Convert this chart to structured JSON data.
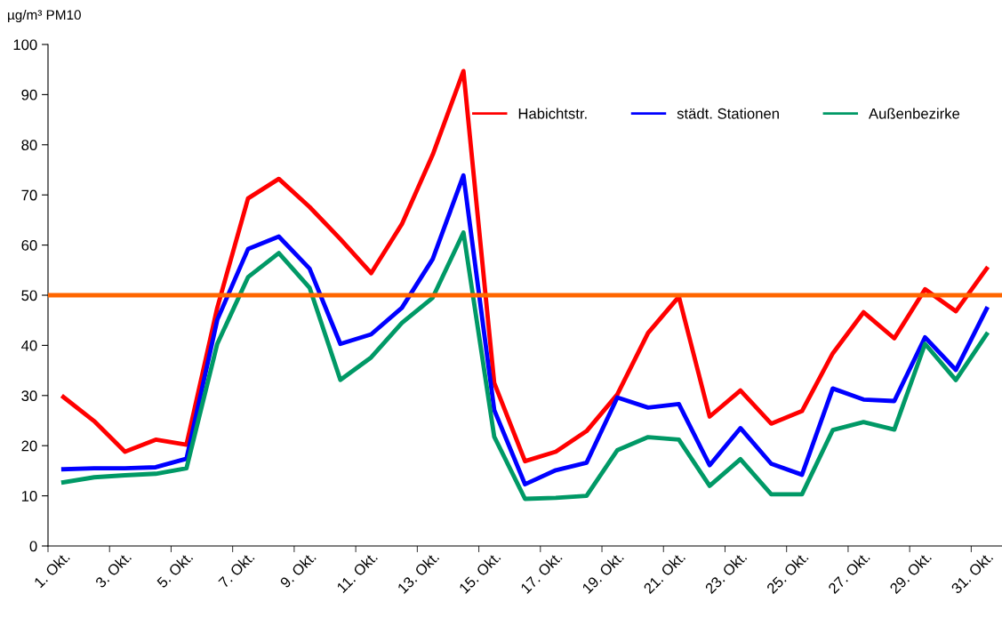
{
  "chart_data": {
    "type": "line",
    "ylabel": "µg/m³ PM10",
    "categories": [
      "1. Okt.",
      null,
      "3. Okt.",
      null,
      "5. Okt.",
      null,
      "7. Okt.",
      null,
      "9. Okt.",
      null,
      "11. Okt.",
      null,
      "13. Okt.",
      null,
      "15. Okt.",
      null,
      "17. Okt.",
      null,
      "19. Okt.",
      null,
      "21. Okt.",
      null,
      "23. Okt.",
      null,
      "25. Okt.",
      null,
      "27. Okt.",
      null,
      "29. Okt.",
      null,
      "31. Okt."
    ],
    "series": [
      {
        "name": "Habichtstr.",
        "color": "#ff0000",
        "values": [
          29.7,
          24.9,
          18.8,
          21.2,
          20.2,
          47.5,
          69.3,
          73.2,
          67.6,
          61.2,
          54.4,
          64.2,
          78.0,
          94.7,
          32.5,
          16.9,
          18.8,
          22.9,
          30.2,
          42.5,
          49.7,
          25.8,
          31.0,
          24.4,
          26.9,
          38.4,
          46.6,
          41.4,
          51.2,
          46.8,
          55.3
        ]
      },
      {
        "name": "städt. Stationen",
        "color": "#0000ff",
        "values": [
          15.3,
          15.5,
          15.5,
          15.7,
          17.4,
          45.1,
          59.2,
          61.7,
          55.3,
          40.3,
          42.2,
          47.5,
          57.2,
          73.9,
          27.1,
          12.3,
          15.1,
          16.6,
          29.6,
          27.6,
          28.3,
          16.1,
          23.5,
          16.4,
          14.2,
          31.4,
          29.2,
          28.9,
          41.6,
          35.1,
          47.3
        ]
      },
      {
        "name": "Außenbezirke",
        "color": "#009966",
        "values": [
          12.7,
          13.7,
          14.1,
          14.4,
          15.5,
          40.3,
          53.6,
          58.4,
          51.5,
          33.1,
          37.6,
          44.5,
          49.5,
          62.5,
          21.8,
          9.4,
          9.6,
          10.0,
          19.1,
          21.7,
          21.2,
          12.0,
          17.3,
          10.3,
          10.3,
          23.1,
          24.7,
          23.2,
          40.3,
          33.1,
          42.2
        ]
      }
    ],
    "ylim": [
      0,
      100
    ],
    "yticks": [
      0,
      10,
      20,
      30,
      40,
      50,
      60,
      70,
      80,
      90,
      100
    ],
    "ref_lines": [
      {
        "axis": "y",
        "value": 50,
        "color": "#ff6600"
      }
    ],
    "grid": false,
    "legend": "top right",
    "marker": "none",
    "line_style": "solid"
  }
}
